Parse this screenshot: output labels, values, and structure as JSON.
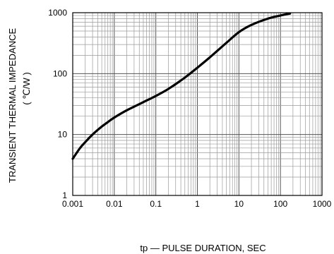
{
  "chart_data": {
    "type": "line",
    "xscale": "log",
    "yscale": "log",
    "xlim": [
      0.001,
      1000
    ],
    "ylim": [
      1,
      1000
    ],
    "grid": true,
    "xlabel": "tp — PULSE DURATION, SEC",
    "ylabel": "TRANSIENT THERMAL IMPEDANCE",
    "yunit": "( ℃/W )",
    "x_ticks": [
      {
        "value": 0.001,
        "label": "0.001"
      },
      {
        "value": 0.01,
        "label": "0.01"
      },
      {
        "value": 0.1,
        "label": "0.1"
      },
      {
        "value": 1,
        "label": "1"
      },
      {
        "value": 10,
        "label": "10"
      },
      {
        "value": 100,
        "label": "100"
      },
      {
        "value": 1000,
        "label": "1000"
      }
    ],
    "y_ticks": [
      {
        "value": 1,
        "label": "1"
      },
      {
        "value": 10,
        "label": "10"
      },
      {
        "value": 100,
        "label": "100"
      },
      {
        "value": 1000,
        "label": "1000"
      }
    ],
    "series": [
      {
        "x": [
          0.001,
          0.0015,
          0.002,
          0.003,
          0.005,
          0.007,
          0.01,
          0.02,
          0.05,
          0.1,
          0.2,
          0.5,
          1,
          2,
          5,
          10,
          20,
          50,
          100,
          170
        ],
        "y": [
          4,
          6,
          7.5,
          10,
          13.5,
          16,
          19,
          25,
          34,
          43,
          56,
          86,
          125,
          185,
          320,
          480,
          630,
          800,
          900,
          970
        ]
      }
    ]
  }
}
